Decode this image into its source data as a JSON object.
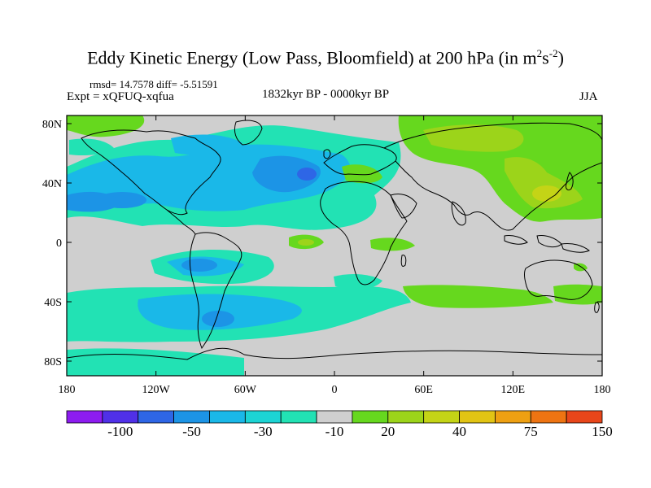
{
  "plot": {
    "title_main": "Eddy Kinetic Energy (Low Pass, Bloomfield) at 200 hPa (in m",
    "title_sup1": "2",
    "title_mid": "s",
    "title_sup2": "-2",
    "title_end": ")",
    "stats": "rmsd= 14.7578 diff= -5.51591",
    "experiment": "Expt = xQFUQ-xqfua",
    "period": "1832kyr BP - 0000kyr BP",
    "season": "JJA"
  },
  "axes": {
    "x_ticks": [
      "180",
      "120W",
      "60W",
      "0",
      "60E",
      "120E",
      "180"
    ],
    "y_ticks": [
      "80N",
      "40N",
      "0",
      "40S",
      "80S"
    ]
  },
  "colorbar": {
    "colors": [
      "#8d1cf0",
      "#5030e8",
      "#2e66e6",
      "#1c94e6",
      "#1ab8e8",
      "#1cd4d4",
      "#22e2b4",
      "#cfcfcf",
      "#66d81e",
      "#9cd41a",
      "#c4d416",
      "#e2c414",
      "#eea012",
      "#ee7412",
      "#e8461a"
    ],
    "labels": [
      "-100",
      "-50",
      "-30",
      "-10",
      "20",
      "40",
      "75",
      "150"
    ]
  },
  "colors": {
    "ocean_land_background": "#cfcfcf",
    "coastline": "#000000"
  }
}
